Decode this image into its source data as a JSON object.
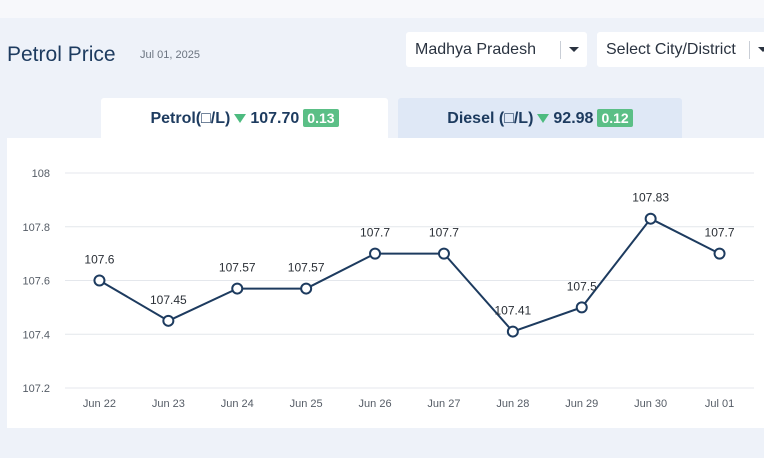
{
  "header": {
    "title": "Petrol Price",
    "date": "Jul 01, 2025"
  },
  "filters": {
    "state_value": "Madhya Pradesh",
    "city_placeholder": "Select City/District"
  },
  "tabs": [
    {
      "label": "Petrol(□/L)",
      "price": "107.70",
      "change": "0.13",
      "direction": "down",
      "active": true
    },
    {
      "label": "Diesel (□/L)",
      "price": "92.98",
      "change": "0.12",
      "direction": "down",
      "active": false
    }
  ],
  "colors": {
    "line": "#1d3b5f",
    "grid": "#e4e7ec",
    "change_badge": "#5bbf86",
    "down_arrow": "#4dbb7f",
    "active_tab": "#ffffff",
    "inactive_tab": "#dfe8f6"
  },
  "chart_data": {
    "type": "line",
    "title": "",
    "xlabel": "",
    "ylabel": "",
    "categories": [
      "Jun 22",
      "Jun 23",
      "Jun 24",
      "Jun 25",
      "Jun 26",
      "Jun 27",
      "Jun 28",
      "Jun 29",
      "Jun 30",
      "Jul 01"
    ],
    "values": [
      107.6,
      107.45,
      107.57,
      107.57,
      107.7,
      107.7,
      107.41,
      107.5,
      107.83,
      107.7
    ],
    "value_labels": [
      "107.6",
      "107.45",
      "107.57",
      "107.57",
      "107.7",
      "107.7",
      "107.41",
      "107.5",
      "107.83",
      "107.7"
    ],
    "ylim": [
      107.2,
      108
    ],
    "yticks": [
      107.2,
      107.4,
      107.6,
      107.8,
      108
    ],
    "ytick_labels": [
      "107.2",
      "107.4",
      "107.6",
      "107.8",
      "108"
    ],
    "grid": true,
    "legend": "none"
  }
}
